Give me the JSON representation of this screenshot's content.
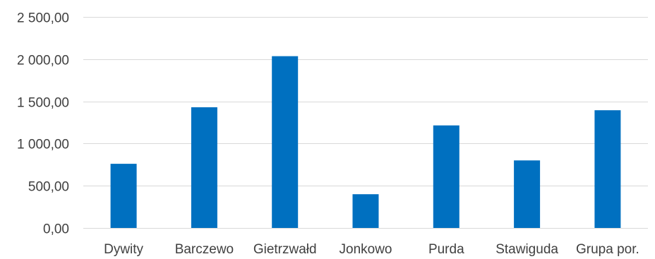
{
  "chart_data": {
    "type": "bar",
    "title": "",
    "xlabel": "",
    "ylabel": "",
    "categories": [
      "Dywity",
      "Barczewo",
      "Gietrzwałd",
      "Jonkowo",
      "Purda",
      "Stawiguda",
      "Grupa por."
    ],
    "values": [
      760,
      1430,
      2035,
      400,
      1215,
      800,
      1395
    ],
    "ylim": [
      0,
      2500
    ],
    "yticks": [
      0,
      500,
      1000,
      1500,
      2000,
      2500
    ],
    "ytick_labels": [
      "0,00",
      "500,00",
      "1 000,00",
      "1 500,00",
      "2 000,00",
      "2 500,00"
    ],
    "grid": true,
    "legend": "none",
    "bar_color": "#0070c0",
    "grid_color": "#d9d9d9",
    "text_color": "#404040"
  }
}
